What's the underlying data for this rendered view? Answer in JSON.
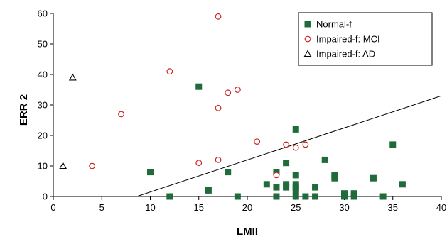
{
  "chart_data": {
    "type": "scatter",
    "xlabel": "LMII",
    "ylabel": "ERR 2",
    "xlim": [
      0,
      40
    ],
    "ylim": [
      0,
      60
    ],
    "xticks": [
      "0",
      "5",
      "10",
      "15",
      "20",
      "25",
      "30",
      "35",
      "40"
    ],
    "yticks": [
      "0",
      "10",
      "20",
      "30",
      "40",
      "50",
      "60"
    ],
    "grid": false,
    "legend_position": "top-right",
    "series": [
      {
        "name": "Normal-f",
        "marker": "filled-square",
        "color": "#1f6b3a",
        "points": [
          [
            10,
            8
          ],
          [
            12,
            0
          ],
          [
            15,
            36
          ],
          [
            16,
            2
          ],
          [
            18,
            8
          ],
          [
            19,
            0
          ],
          [
            22,
            4
          ],
          [
            23,
            8
          ],
          [
            23,
            3
          ],
          [
            23,
            0
          ],
          [
            24,
            11
          ],
          [
            24,
            4
          ],
          [
            24,
            3
          ],
          [
            25,
            22
          ],
          [
            25,
            7
          ],
          [
            25,
            4
          ],
          [
            25,
            3
          ],
          [
            25,
            2
          ],
          [
            25,
            0
          ],
          [
            26,
            0
          ],
          [
            27,
            3
          ],
          [
            27,
            0
          ],
          [
            28,
            12
          ],
          [
            29,
            7
          ],
          [
            29,
            6
          ],
          [
            30,
            1
          ],
          [
            30,
            0
          ],
          [
            31,
            1
          ],
          [
            31,
            0
          ],
          [
            33,
            6
          ],
          [
            34,
            0
          ],
          [
            35,
            17
          ],
          [
            36,
            4
          ]
        ]
      },
      {
        "name": "Impaired-f: MCI",
        "marker": "open-circle",
        "color": "#cc2222",
        "points": [
          [
            4,
            10
          ],
          [
            7,
            27
          ],
          [
            12,
            41
          ],
          [
            15,
            11
          ],
          [
            17,
            59
          ],
          [
            17,
            29
          ],
          [
            17,
            12
          ],
          [
            18,
            34
          ],
          [
            19,
            35
          ],
          [
            21,
            18
          ],
          [
            23,
            7
          ],
          [
            24,
            17
          ],
          [
            25,
            16
          ],
          [
            26,
            17
          ]
        ]
      },
      {
        "name": "Impaired-f: AD",
        "marker": "open-triangle",
        "color": "#000000",
        "points": [
          [
            1,
            10
          ],
          [
            2,
            39
          ]
        ]
      }
    ],
    "trendline": {
      "x": [
        8.6,
        40
      ],
      "y": [
        0,
        33
      ]
    }
  }
}
